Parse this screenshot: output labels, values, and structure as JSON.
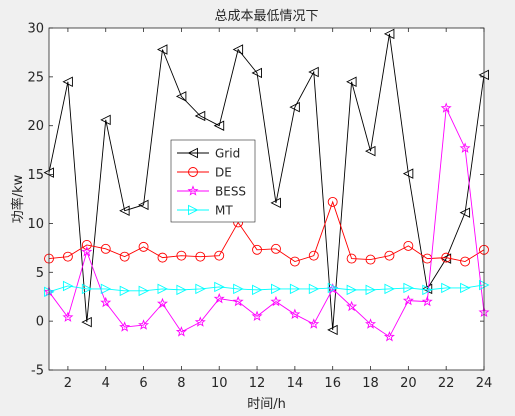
{
  "chart_data": {
    "type": "line",
    "title": "总成本最低情况下",
    "xlabel": "时间/h",
    "ylabel": "功率/kw",
    "xlim": [
      1,
      24
    ],
    "ylim": [
      -5,
      30
    ],
    "xticks": [
      2,
      4,
      6,
      8,
      10,
      12,
      14,
      16,
      18,
      20,
      22,
      24
    ],
    "yticks": [
      -5,
      0,
      5,
      10,
      15,
      20,
      25,
      30
    ],
    "legend_position": "center-left",
    "x": [
      1,
      2,
      3,
      4,
      5,
      6,
      7,
      8,
      9,
      10,
      11,
      12,
      13,
      14,
      15,
      16,
      17,
      18,
      19,
      20,
      21,
      22,
      23,
      24
    ],
    "series": [
      {
        "name": "Grid",
        "color": "#000000",
        "marker": "triangle-left",
        "values": [
          15.2,
          24.5,
          -0.1,
          20.6,
          11.3,
          11.9,
          27.8,
          23.0,
          21.0,
          20.0,
          27.8,
          25.4,
          12.1,
          21.9,
          25.5,
          -0.9,
          24.5,
          17.4,
          29.4,
          15.1,
          3.3,
          6.4,
          11.1,
          25.2
        ]
      },
      {
        "name": "DE",
        "color": "#ff0000",
        "marker": "circle",
        "values": [
          6.4,
          6.6,
          7.8,
          7.4,
          6.6,
          7.6,
          6.5,
          6.7,
          6.6,
          6.7,
          10.1,
          7.3,
          7.4,
          6.1,
          6.7,
          12.2,
          6.4,
          6.3,
          6.7,
          7.7,
          6.4,
          6.5,
          6.1,
          7.3
        ]
      },
      {
        "name": "BESS",
        "color": "#ff00ff",
        "marker": "star",
        "values": [
          3.0,
          0.4,
          7.1,
          1.9,
          -0.6,
          -0.4,
          1.8,
          -1.1,
          -0.1,
          2.3,
          2.0,
          0.5,
          2.0,
          0.7,
          -0.3,
          3.3,
          1.5,
          -0.3,
          -1.6,
          2.1,
          2.0,
          21.8,
          17.7,
          0.9
        ]
      },
      {
        "name": "MT",
        "color": "#00ffff",
        "marker": "triangle-right",
        "values": [
          3.0,
          3.6,
          3.3,
          3.3,
          3.1,
          3.1,
          3.3,
          3.2,
          3.3,
          3.5,
          3.3,
          3.2,
          3.3,
          3.3,
          3.3,
          3.4,
          3.2,
          3.2,
          3.3,
          3.4,
          3.2,
          3.4,
          3.4,
          3.7
        ]
      }
    ]
  }
}
